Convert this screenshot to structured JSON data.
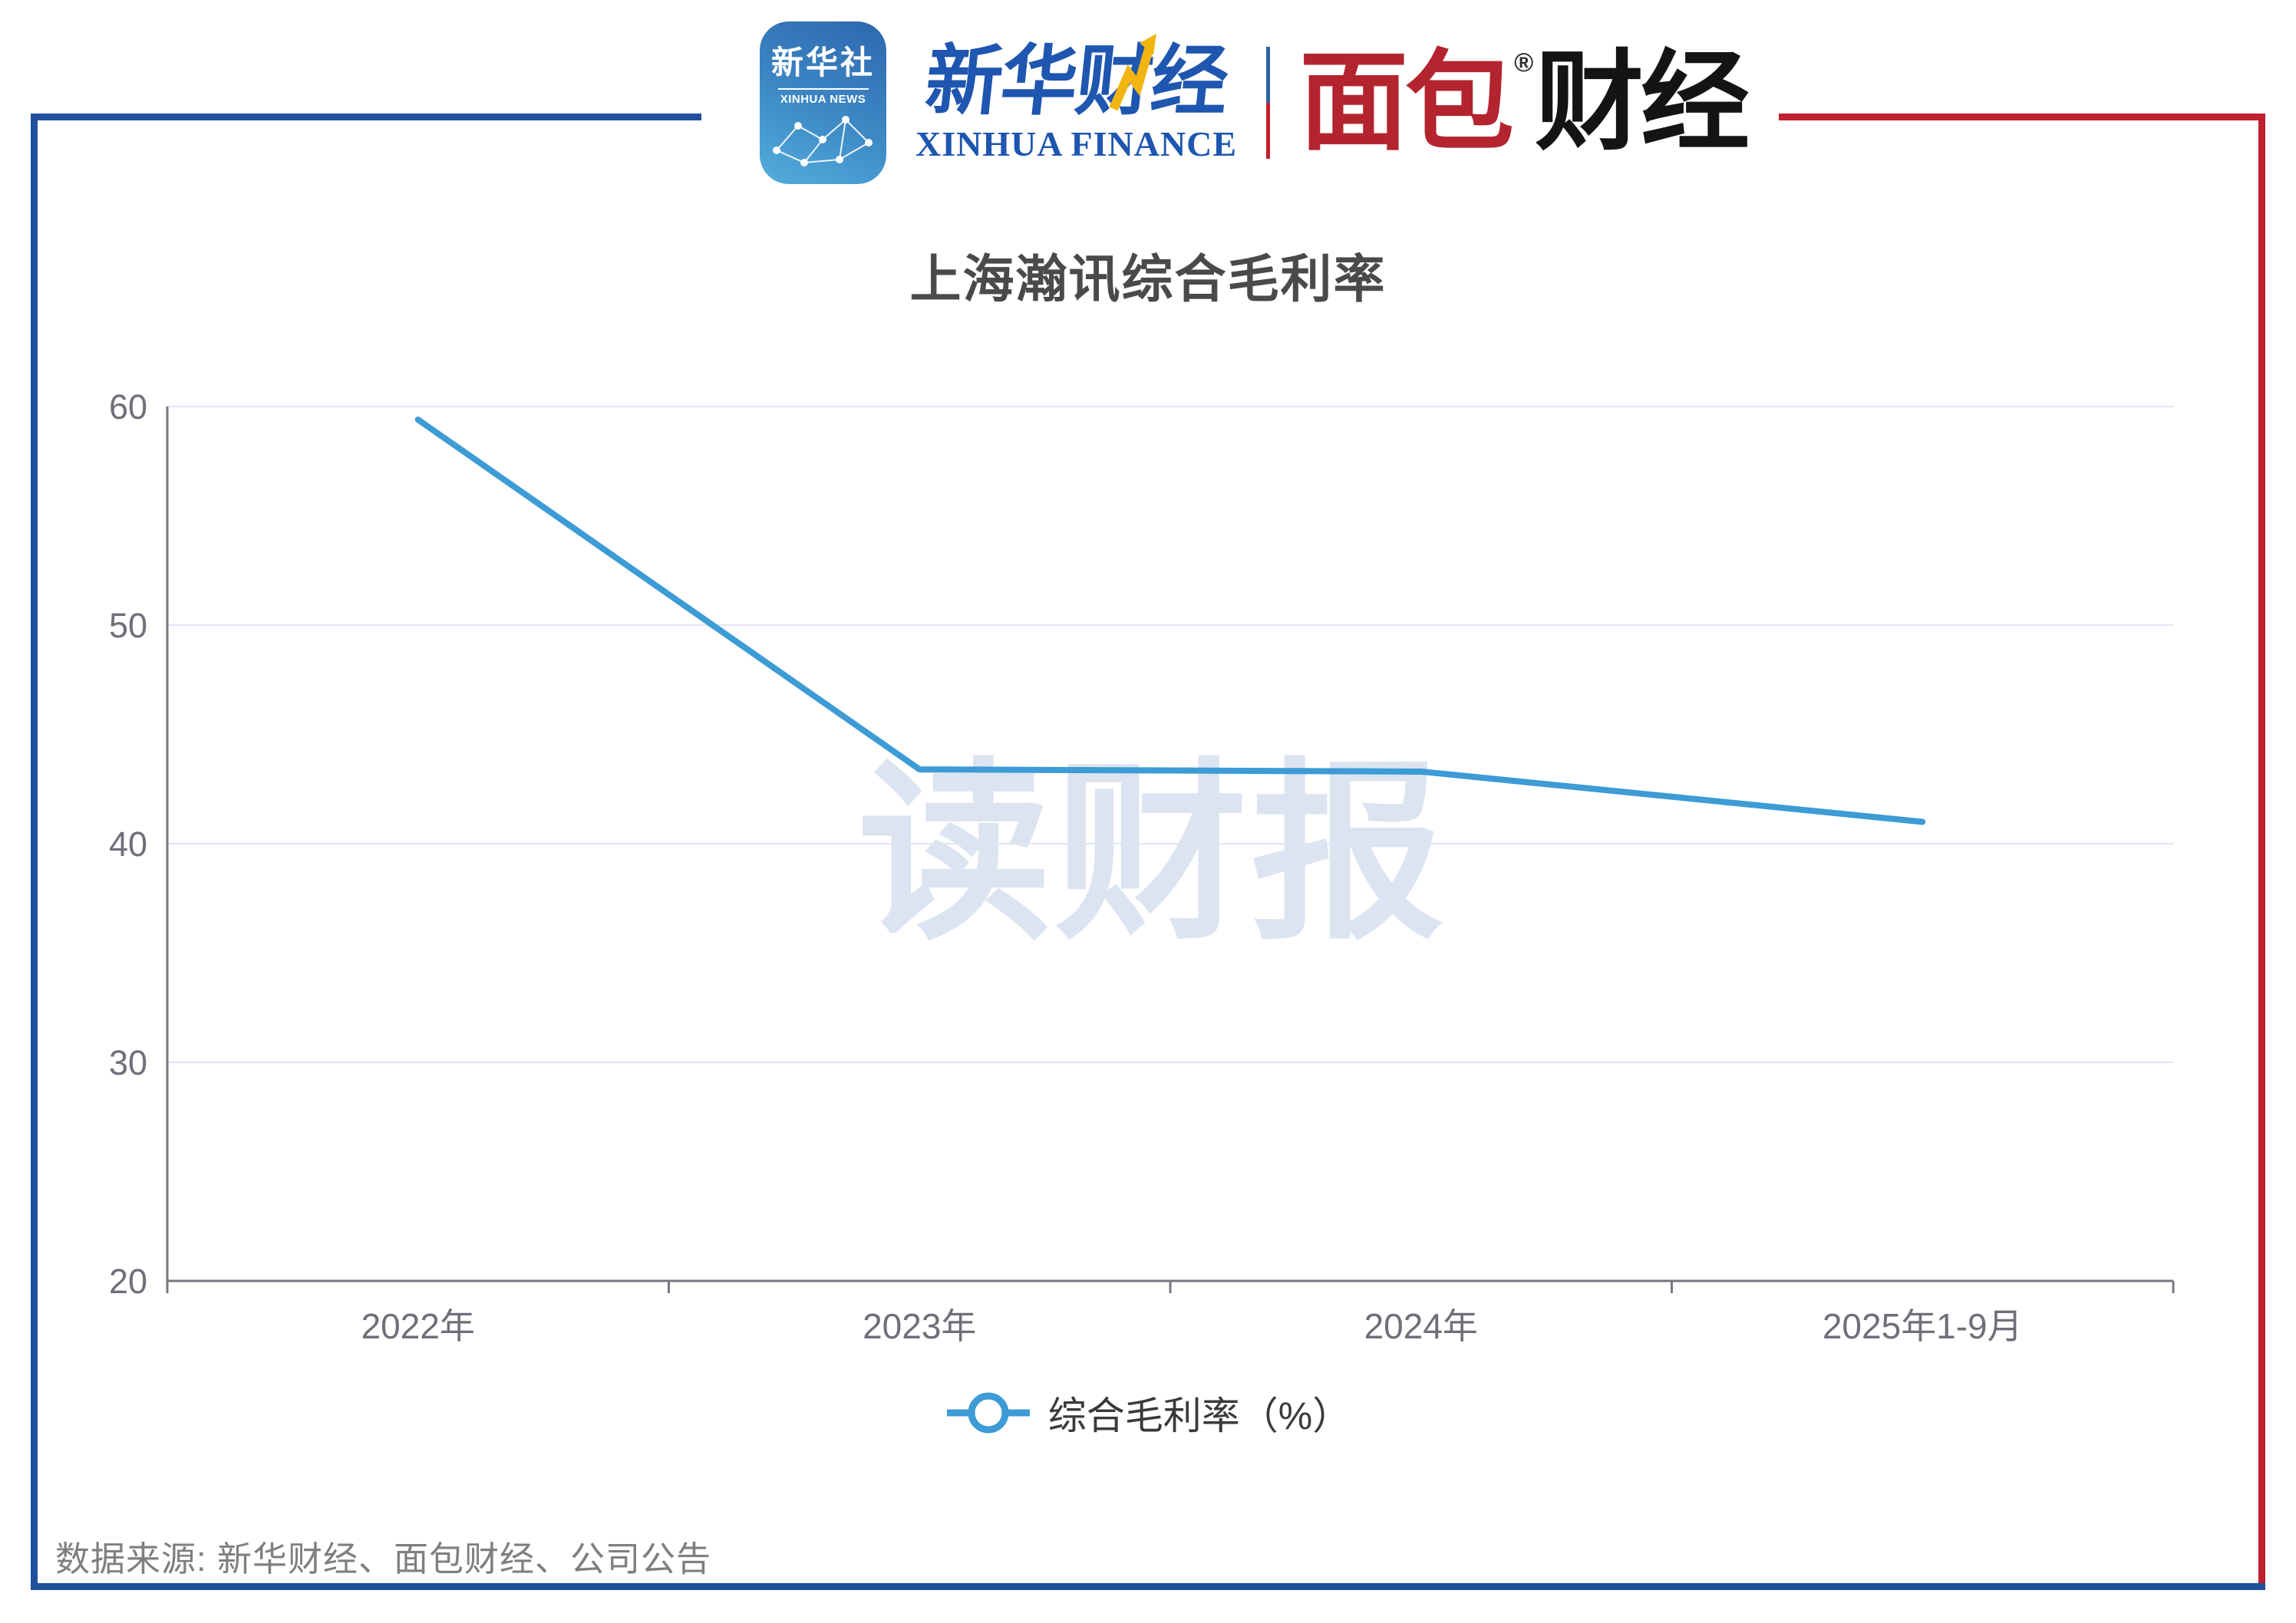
{
  "header": {
    "xinhua_news_app": {
      "line1": "新华社",
      "line2": "XINHUA NEWS"
    },
    "xinhua_finance": {
      "cn": "新华财经",
      "en": "XINHUA FINANCE"
    },
    "mianbao_finance": {
      "part1": "面包",
      "registered_mark": "®",
      "part2": "财经"
    }
  },
  "chart_data": {
    "type": "line",
    "title": "上海瀚讯综合毛利率",
    "categories": [
      "2022年",
      "2023年",
      "2024年",
      "2025年1-9月"
    ],
    "series": [
      {
        "name": "综合毛利率（%）",
        "values": [
          59.4,
          43.4,
          43.3,
          41.0
        ]
      }
    ],
    "ylim": [
      20,
      60
    ],
    "ytick_step": 10,
    "xlabel": "",
    "ylabel": "",
    "grid": true,
    "legend_position": "bottom",
    "line_color": "#3D9BD6",
    "grid_color": "#DFE6F3",
    "axis_color": "#75787F",
    "axis_label_color": "#6E7079"
  },
  "watermark": "读财报",
  "source": {
    "text": "数据来源: 新华财经、面包财经、公司公告"
  },
  "colors": {
    "frame_blue": "#21519E",
    "frame_red": "#C1202E"
  }
}
